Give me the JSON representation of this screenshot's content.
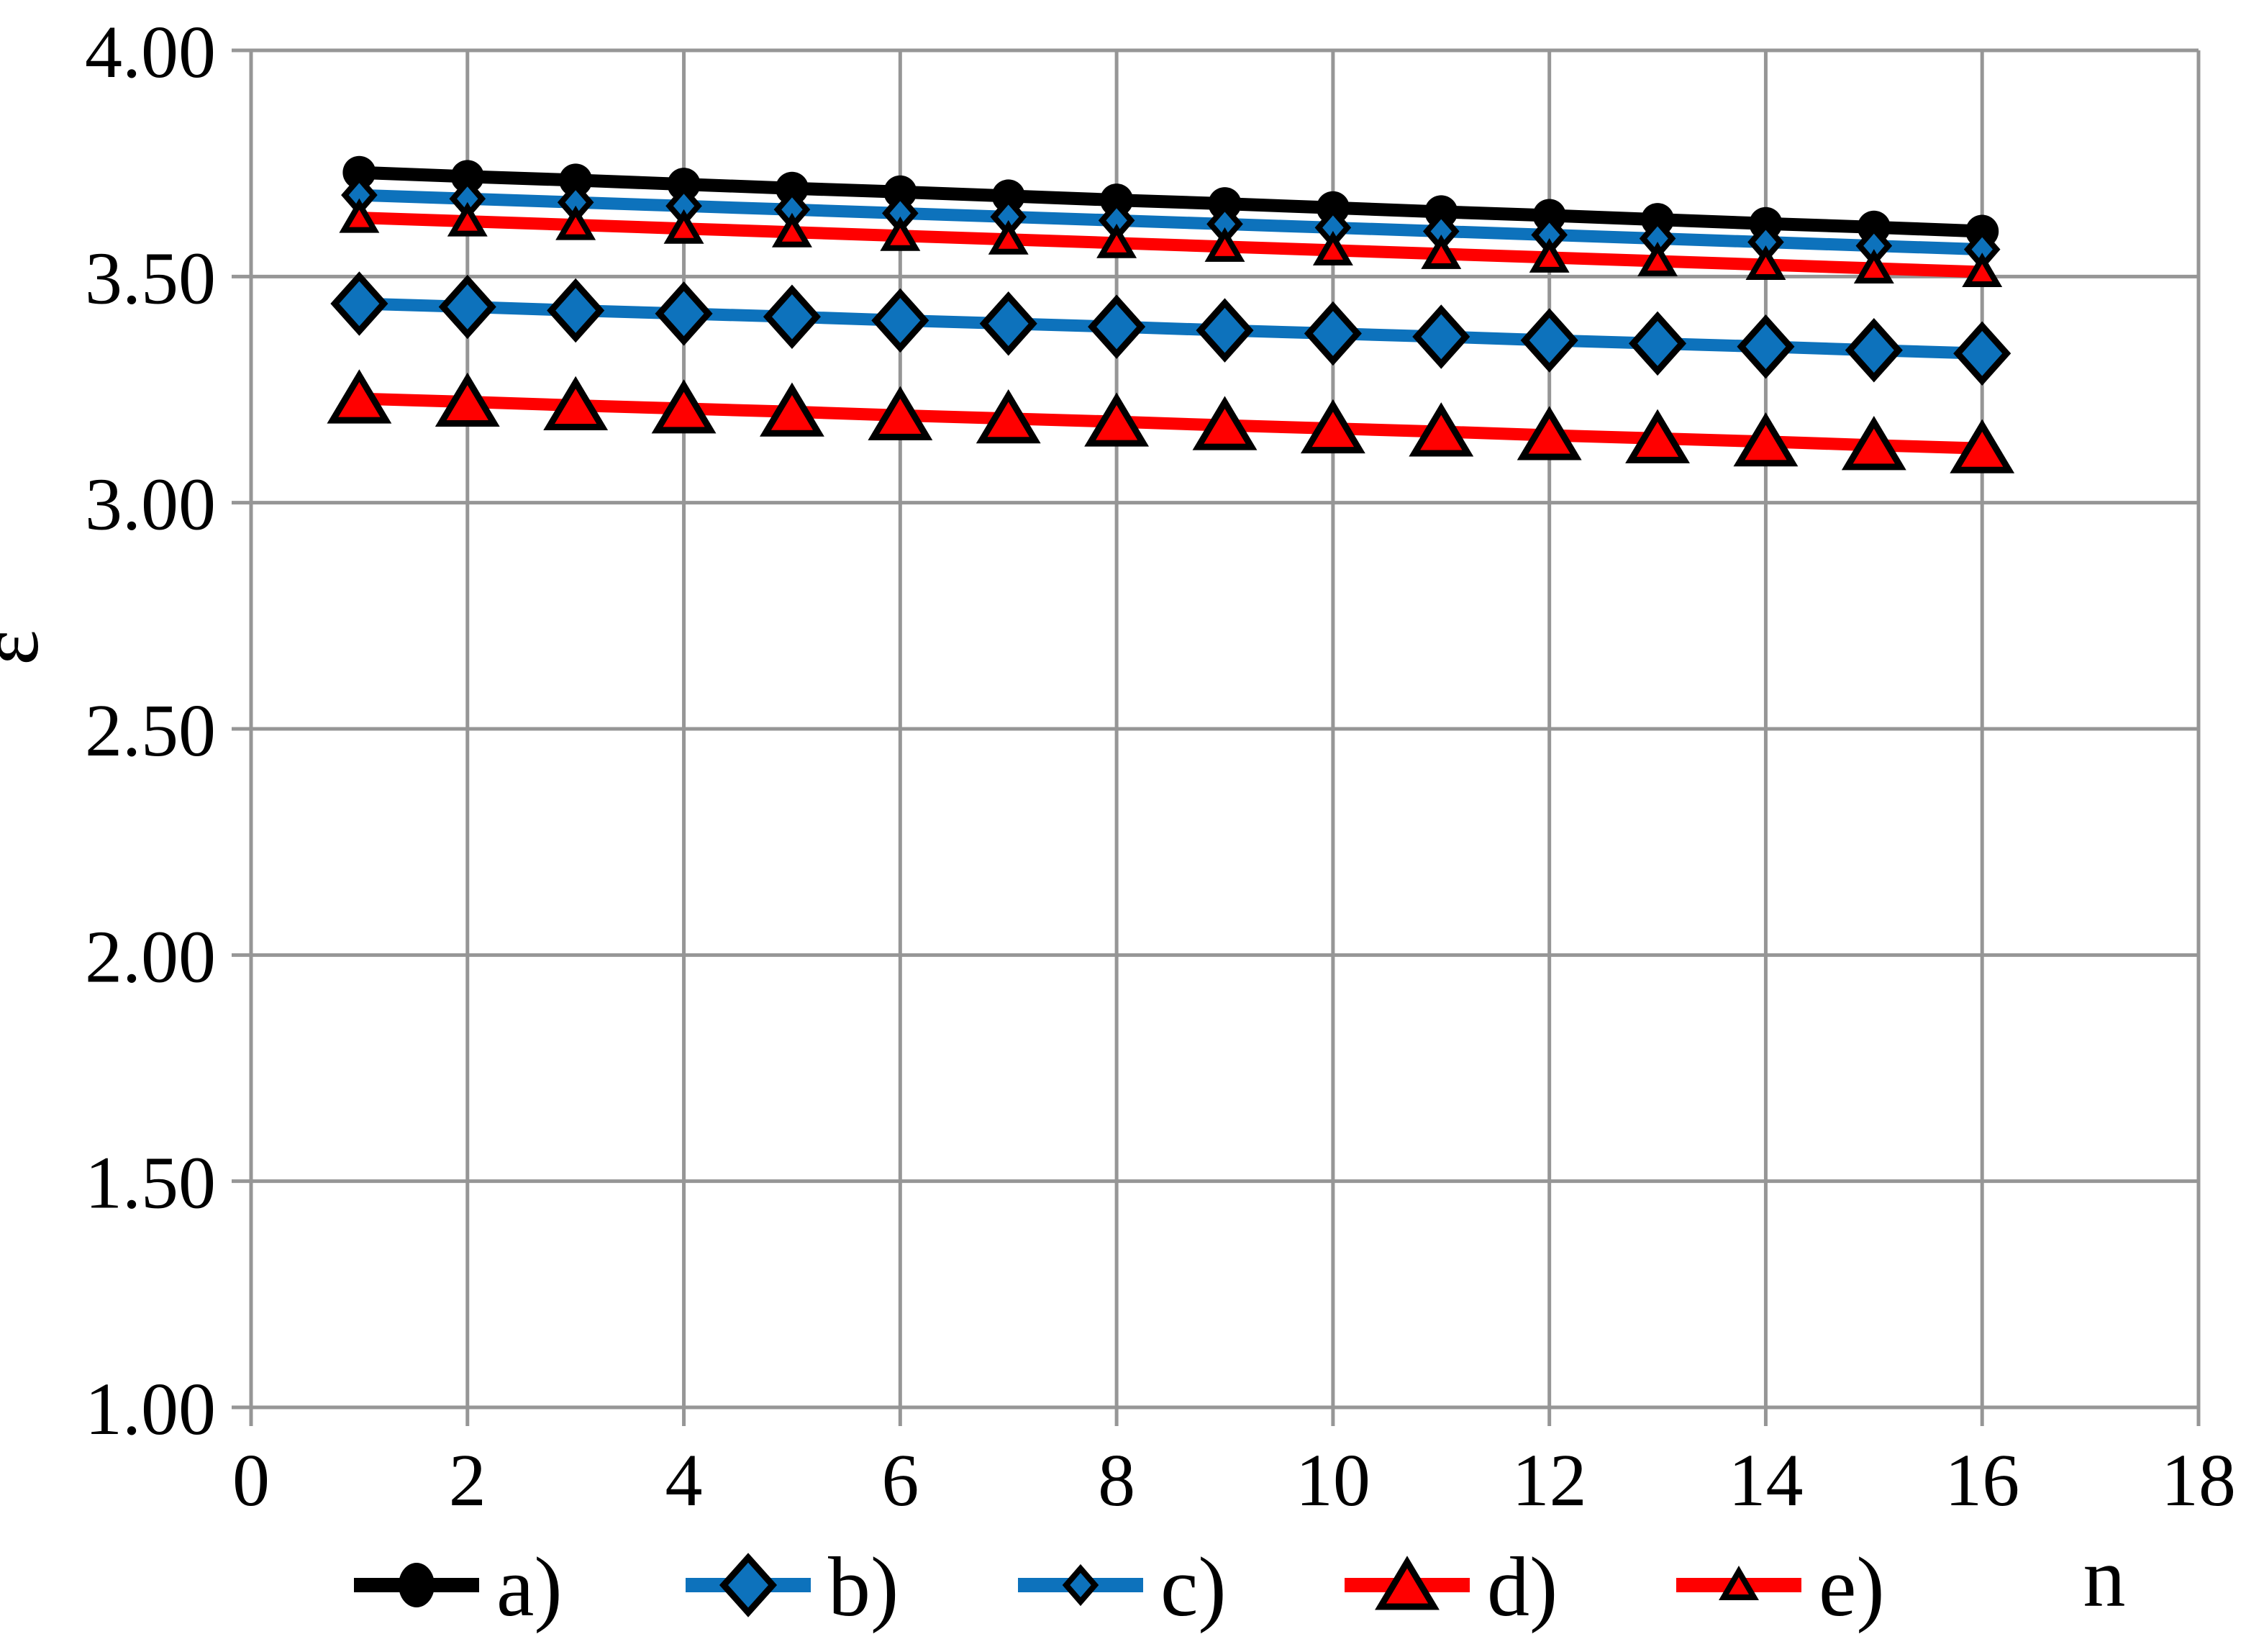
{
  "chart_data": {
    "type": "line",
    "title": "",
    "xlabel": "n",
    "ylabel": "ε",
    "xlim": [
      0,
      18
    ],
    "ylim": [
      1.0,
      4.0
    ],
    "grid": true,
    "legend_position": "bottom",
    "x_tick_labels": [
      "0",
      "2",
      "4",
      "6",
      "8",
      "10",
      "12",
      "14",
      "16",
      "18"
    ],
    "x_tick_values": [
      0,
      2,
      4,
      6,
      8,
      10,
      12,
      14,
      16,
      18
    ],
    "y_tick_labels": [
      "4.00",
      "3.50",
      "3.00",
      "2.50",
      "2.00",
      "1.50",
      "1.00"
    ],
    "y_tick_values": [
      4.0,
      3.5,
      3.0,
      2.5,
      2.0,
      1.5,
      1.0
    ],
    "x": [
      1,
      2,
      3,
      4,
      5,
      6,
      7,
      8,
      9,
      10,
      11,
      12,
      13,
      14,
      15,
      16
    ],
    "series": [
      {
        "name": "a)",
        "color": "#000000",
        "marker": "circle",
        "marker_size": "large",
        "values": [
          3.73,
          3.721,
          3.713,
          3.704,
          3.695,
          3.687,
          3.678,
          3.669,
          3.661,
          3.652,
          3.643,
          3.635,
          3.626,
          3.617,
          3.609,
          3.6
        ]
      },
      {
        "name": "b)",
        "color": "#0D72BC",
        "marker": "diamond",
        "marker_size": "large",
        "values": [
          3.44,
          3.433,
          3.425,
          3.418,
          3.411,
          3.403,
          3.396,
          3.389,
          3.381,
          3.374,
          3.367,
          3.359,
          3.352,
          3.345,
          3.337,
          3.33
        ]
      },
      {
        "name": "c)",
        "color": "#0D72BC",
        "marker": "diamond",
        "marker_size": "small",
        "values": [
          3.68,
          3.672,
          3.664,
          3.656,
          3.648,
          3.64,
          3.632,
          3.624,
          3.616,
          3.608,
          3.6,
          3.592,
          3.584,
          3.576,
          3.568,
          3.56
        ]
      },
      {
        "name": "d)",
        "color": "#FF0000",
        "marker": "triangle",
        "marker_size": "large",
        "values": [
          3.23,
          3.223,
          3.215,
          3.208,
          3.201,
          3.193,
          3.186,
          3.179,
          3.171,
          3.164,
          3.157,
          3.149,
          3.142,
          3.135,
          3.127,
          3.12
        ]
      },
      {
        "name": "e)",
        "color": "#FF0000",
        "marker": "triangle",
        "marker_size": "small",
        "values": [
          3.63,
          3.622,
          3.614,
          3.606,
          3.598,
          3.59,
          3.582,
          3.574,
          3.566,
          3.558,
          3.55,
          3.542,
          3.534,
          3.526,
          3.518,
          3.51
        ]
      }
    ],
    "colors": {
      "grid": "#969696",
      "axis": "#969696",
      "text": "#000000",
      "background": "#ffffff"
    }
  }
}
